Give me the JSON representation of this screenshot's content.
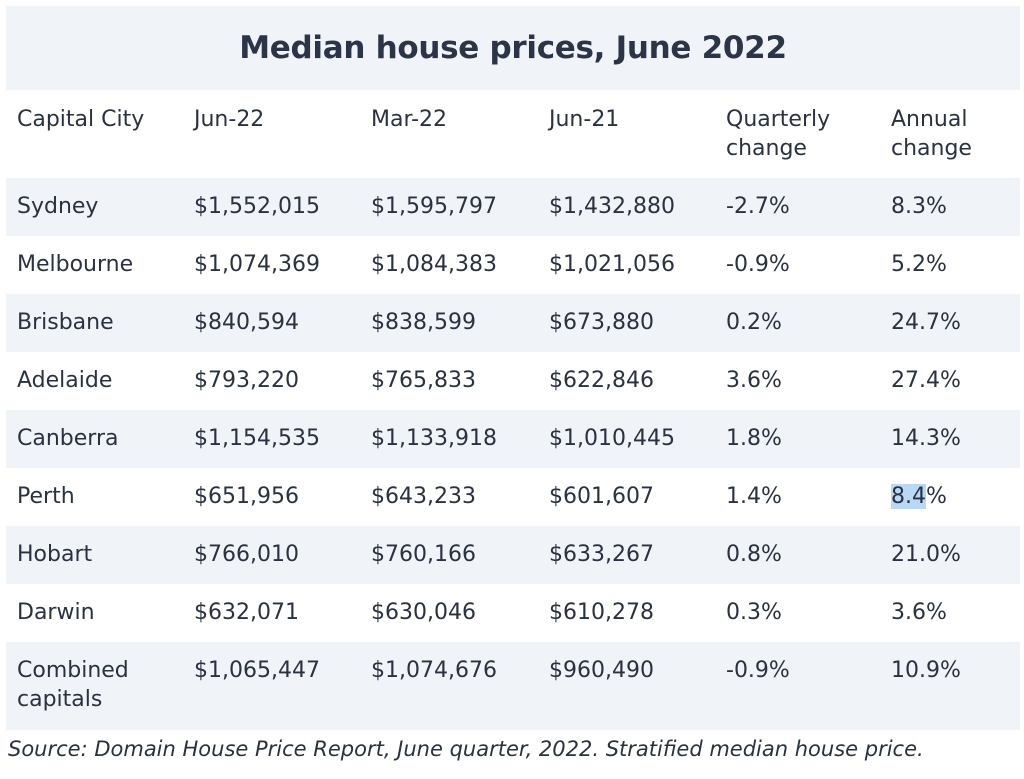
{
  "title": "Median house prices, June 2022",
  "columns": [
    "Capital City",
    "Jun-22",
    "Mar-22",
    "Jun-21",
    "Quarterly change",
    "Annual change"
  ],
  "rows": [
    [
      "Sydney",
      "$1,552,015",
      "$1,595,797",
      "$1,432,880",
      "-2.7%",
      "8.3%"
    ],
    [
      "Melbourne",
      "$1,074,369",
      "$1,084,383",
      "$1,021,056",
      "-0.9%",
      "5.2%"
    ],
    [
      "Brisbane",
      "$840,594",
      "$838,599",
      "$673,880",
      "0.2%",
      "24.7%"
    ],
    [
      "Adelaide",
      "$793,220",
      "$765,833",
      "$622,846",
      "3.6%",
      "27.4%"
    ],
    [
      "Canberra",
      "$1,154,535",
      "$1,133,918",
      "$1,010,445",
      "1.8%",
      "14.3%"
    ],
    [
      "Perth",
      "$651,956",
      "$643,233",
      "$601,607",
      "1.4%",
      "8.4%"
    ],
    [
      "Hobart",
      "$766,010",
      "$760,166",
      "$633,267",
      "0.8%",
      "21.0%"
    ],
    [
      "Darwin",
      "$632,071",
      "$630,046",
      "$610,278",
      "0.3%",
      "3.6%"
    ],
    [
      "Combined capitals",
      "$1,065,447",
      "$1,074,676",
      "$960,490",
      "-0.9%",
      "10.9%"
    ]
  ],
  "selection": {
    "text": "8.4",
    "color": "#b8d8f5"
  },
  "source": "Source: Domain House Price Report, June quarter, 2022. Stratified median house price.",
  "colors": {
    "stripe": "#f0f3f7",
    "text": "#2a3140",
    "title": "#2b3547"
  }
}
